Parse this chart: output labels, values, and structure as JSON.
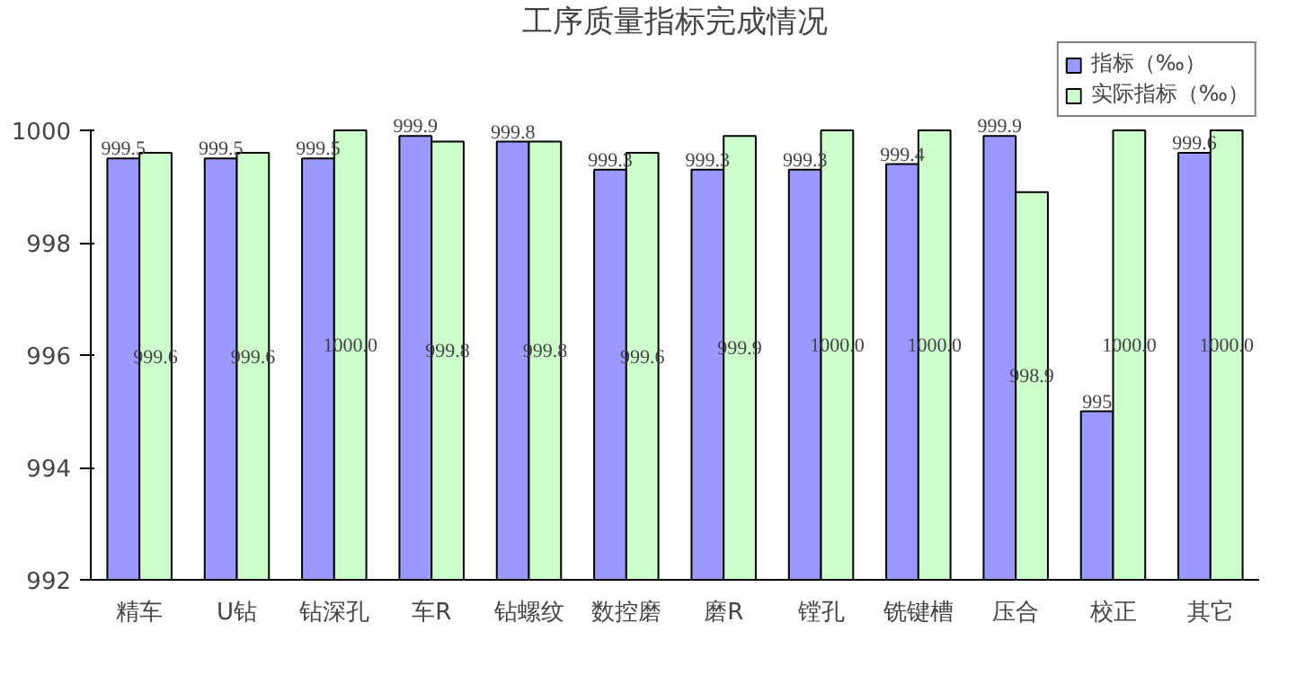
{
  "chart_data": {
    "type": "bar",
    "title": "工序质量指标完成情况",
    "categories": [
      "精车",
      "U钻",
      "钻深孔",
      "车R",
      "钻螺纹",
      "数控磨",
      "磨R",
      "镗孔",
      "铣键槽",
      "压合",
      "校正",
      "其它"
    ],
    "series": [
      {
        "name": "指标（‰）",
        "color": "#9999ff",
        "values": [
          999.5,
          999.5,
          999.5,
          999.9,
          999.8,
          999.3,
          999.3,
          999.3,
          999.4,
          999.9,
          995,
          999.6
        ],
        "value_labels": [
          "999.5",
          "999.5",
          "999.5",
          "999.9",
          "999.8",
          "999.3",
          "999.3",
          "999.3",
          "999.4",
          "999.9",
          "995",
          "999.6"
        ]
      },
      {
        "name": "实际指标（‰）",
        "color": "#ccffcc",
        "values": [
          999.6,
          999.6,
          1000.0,
          999.8,
          999.8,
          999.6,
          999.9,
          1000.0,
          1000.0,
          998.9,
          1000.0,
          1000.0
        ],
        "value_labels": [
          "999.6",
          "999.6",
          "1000.0",
          "999.8",
          "999.8",
          "999.6",
          "999.9",
          "1000.0",
          "1000.0",
          "998.9",
          "1000.0",
          "1000.0"
        ]
      }
    ],
    "ylim": [
      992,
      1000
    ],
    "yticks": [
      992,
      994,
      996,
      998,
      1000
    ],
    "grid": false,
    "legend": "top right"
  }
}
